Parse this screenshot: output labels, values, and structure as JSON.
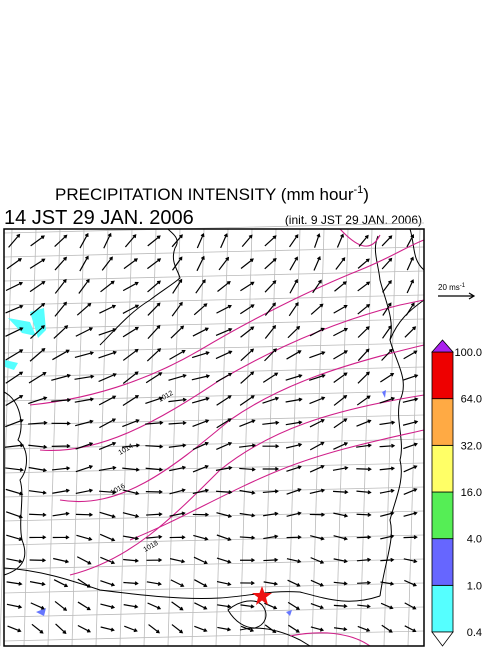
{
  "header": {
    "title": "PRECIPITATION INTENSITY (mm hour",
    "title_superscript": "-1",
    "title_close": ")",
    "valid_time": "14 JST 29 JAN. 2006",
    "init_time": "(init. 9 JST 29 JAN. 2006)"
  },
  "reference_vector": {
    "label": "20 ms",
    "superscript": "-1"
  },
  "isobar_labels": [
    "1012",
    "1014",
    "1016",
    "1018"
  ],
  "colorbar": {
    "levels": [
      {
        "value": 0.4,
        "label": "0.4"
      },
      {
        "value": 1,
        "label": "1.0"
      },
      {
        "value": 4,
        "label": "4.0"
      },
      {
        "value": 16,
        "label": "16.0"
      },
      {
        "value": 32,
        "label": "32.0"
      },
      {
        "value": 64,
        "label": "64.0"
      },
      {
        "value": 100,
        "label": "100.0"
      }
    ],
    "colors": [
      "#55ffff",
      "#6666ff",
      "#55ee55",
      "#ffff66",
      "#ffaa44",
      "#ee0000"
    ],
    "over_color": "#aa22ee",
    "under_color": "#ffffff"
  }
}
